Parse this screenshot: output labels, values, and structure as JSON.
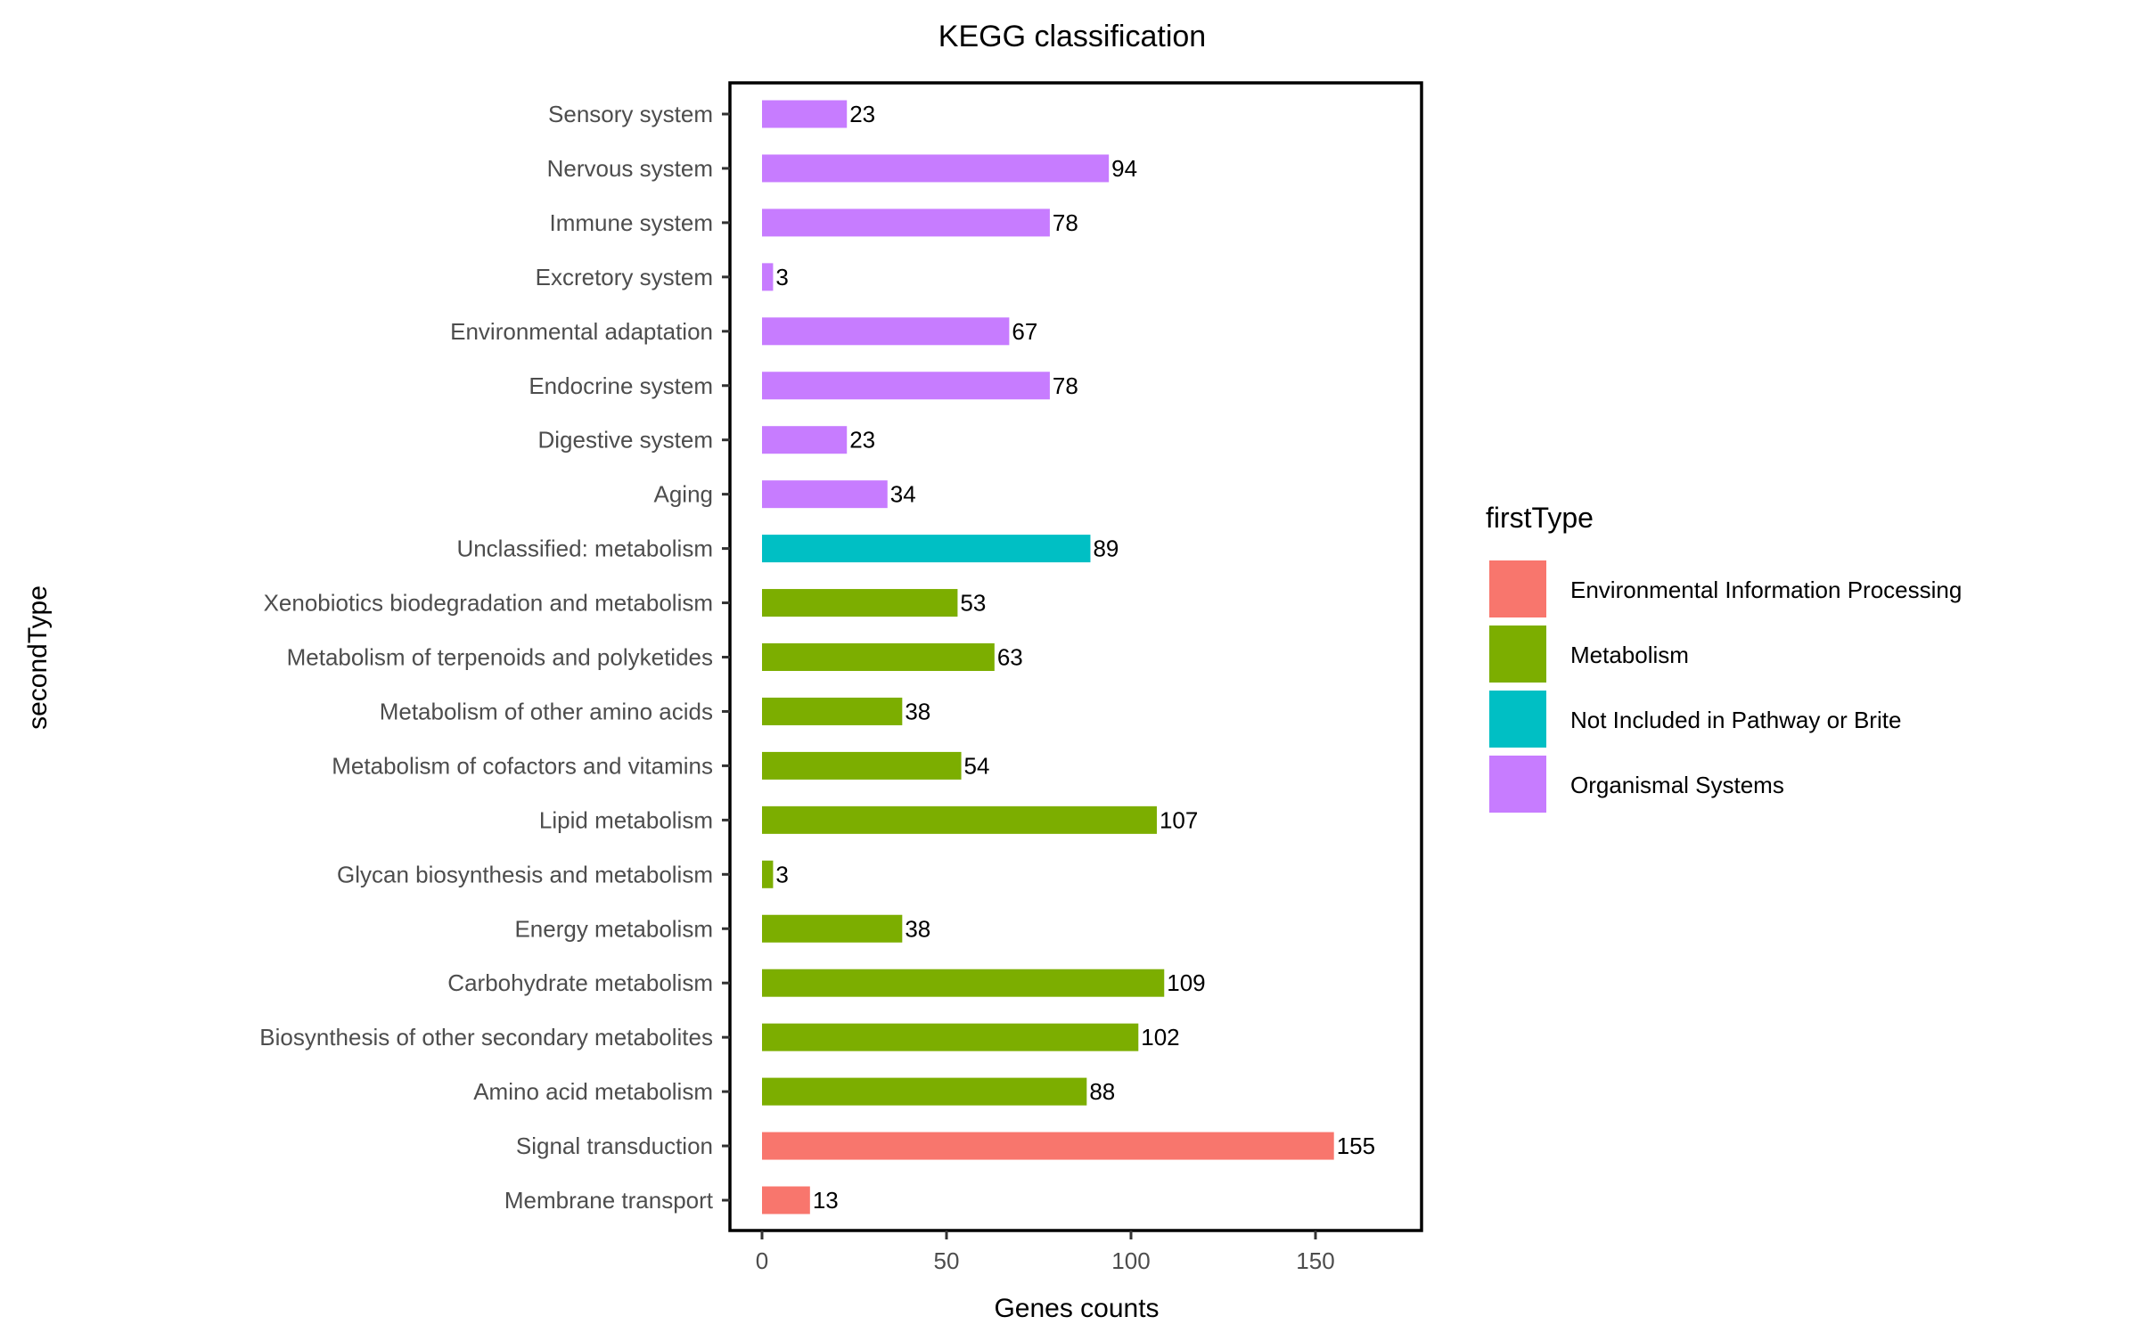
{
  "chart_data": {
    "type": "bar",
    "orientation": "horizontal",
    "title": "KEGG classification",
    "xlabel": "Genes counts",
    "ylabel": "secondType",
    "xlim": [
      0,
      178
    ],
    "xticks": [
      0,
      50,
      100,
      150
    ],
    "grid": false,
    "legend": {
      "title": "firstType",
      "placement": "right",
      "entries": [
        {
          "name": "Environmental Information Processing",
          "color": "#F8766D"
        },
        {
          "name": "Metabolism",
          "color": "#7CAE00"
        },
        {
          "name": "Not Included in Pathway or Brite",
          "color": "#00BFC4"
        },
        {
          "name": "Organismal Systems",
          "color": "#C77CFF"
        }
      ]
    },
    "bars": [
      {
        "category": "Sensory system",
        "value": 23,
        "group": "Organismal Systems"
      },
      {
        "category": "Nervous system",
        "value": 94,
        "group": "Organismal Systems"
      },
      {
        "category": "Immune system",
        "value": 78,
        "group": "Organismal Systems"
      },
      {
        "category": "Excretory system",
        "value": 3,
        "group": "Organismal Systems"
      },
      {
        "category": "Environmental adaptation",
        "value": 67,
        "group": "Organismal Systems"
      },
      {
        "category": "Endocrine system",
        "value": 78,
        "group": "Organismal Systems"
      },
      {
        "category": "Digestive system",
        "value": 23,
        "group": "Organismal Systems"
      },
      {
        "category": "Aging",
        "value": 34,
        "group": "Organismal Systems"
      },
      {
        "category": "Unclassified: metabolism",
        "value": 89,
        "group": "Not Included in Pathway or Brite"
      },
      {
        "category": "Xenobiotics biodegradation and metabolism",
        "value": 53,
        "group": "Metabolism"
      },
      {
        "category": "Metabolism of terpenoids and polyketides",
        "value": 63,
        "group": "Metabolism"
      },
      {
        "category": "Metabolism of other amino acids",
        "value": 38,
        "group": "Metabolism"
      },
      {
        "category": "Metabolism of cofactors and vitamins",
        "value": 54,
        "group": "Metabolism"
      },
      {
        "category": "Lipid metabolism",
        "value": 107,
        "group": "Metabolism"
      },
      {
        "category": "Glycan biosynthesis and metabolism",
        "value": 3,
        "group": "Metabolism"
      },
      {
        "category": "Energy metabolism",
        "value": 38,
        "group": "Metabolism"
      },
      {
        "category": "Carbohydrate metabolism",
        "value": 109,
        "group": "Metabolism"
      },
      {
        "category": "Biosynthesis of other secondary metabolites",
        "value": 102,
        "group": "Metabolism"
      },
      {
        "category": "Amino acid metabolism",
        "value": 88,
        "group": "Metabolism"
      },
      {
        "category": "Signal transduction",
        "value": 155,
        "group": "Environmental Information Processing"
      },
      {
        "category": "Membrane transport",
        "value": 13,
        "group": "Environmental Information Processing"
      }
    ]
  }
}
